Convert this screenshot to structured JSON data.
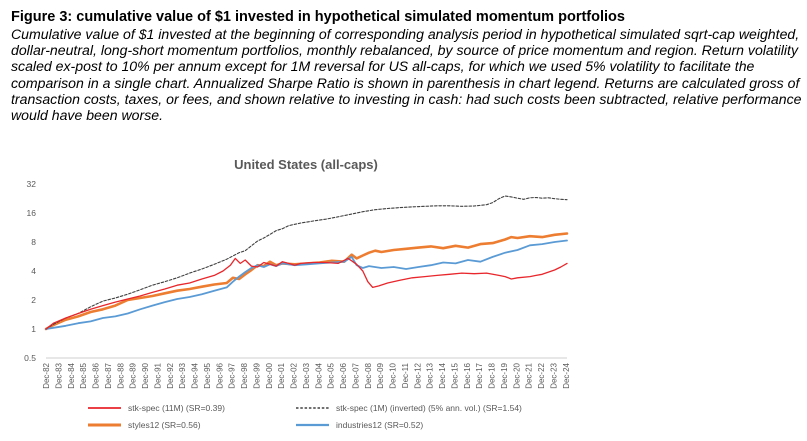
{
  "figure": {
    "title": "Figure 3: cumulative value of $1 invested in hypothetical simulated momentum portfolios",
    "caption": "Cumulative value of $1 invested at the beginning of corresponding analysis period in hypothetical simulated sqrt-cap weighted, dollar-neutral, long-short momentum portfolios, monthly rebalanced, by source of price momentum and region. Return volatility scaled ex-post to 10% per annum except for 1M reversal for US all-caps, for which we used 5% volatility to facilitate the comparison in a single chart. Annualized Sharpe Ratio is shown in parenthesis in chart legend. Returns are calculated gross of transaction costs, taxes, or fees, and shown relative to investing in cash: had such costs been subtracted, relative performance would have been worse."
  },
  "chart_data": {
    "type": "line",
    "title": "United States (all-caps)",
    "yscale": "log2",
    "ylim": [
      0.5,
      32
    ],
    "yticks": [
      "32",
      "16",
      "8",
      "4",
      "2",
      "1",
      "0.5"
    ],
    "xlim": [
      1982.9,
      2025.0
    ],
    "xticks": [
      "Dec-82",
      "Dec-83",
      "Dec-84",
      "Dec-85",
      "Dec-86",
      "Dec-87",
      "Dec-88",
      "Dec-89",
      "Dec-90",
      "Dec-91",
      "Dec-92",
      "Dec-93",
      "Dec-94",
      "Dec-95",
      "Dec-96",
      "Dec-97",
      "Dec-98",
      "Dec-99",
      "Dec-00",
      "Dec-01",
      "Dec-02",
      "Dec-03",
      "Dec-04",
      "Dec-05",
      "Dec-06",
      "Dec-07",
      "Dec-08",
      "Dec-09",
      "Dec-10",
      "Dec-11",
      "Dec-12",
      "Dec-13",
      "Dec-14",
      "Dec-15",
      "Dec-16",
      "Dec-17",
      "Dec-18",
      "Dec-19",
      "Dec-20",
      "Dec-21",
      "Dec-22",
      "Dec-23",
      "Dec-24"
    ],
    "series": [
      {
        "name": "stk-spec (11M) (SR=0.39)",
        "color": "#e8262b",
        "width": 1.3,
        "dash": "",
        "points": [
          [
            1982.9,
            1.0
          ],
          [
            1983.5,
            1.15
          ],
          [
            1984.5,
            1.3
          ],
          [
            1985.5,
            1.45
          ],
          [
            1986.5,
            1.6
          ],
          [
            1987.5,
            1.75
          ],
          [
            1988.5,
            1.9
          ],
          [
            1989.5,
            2.05
          ],
          [
            1990.5,
            2.2
          ],
          [
            1991.5,
            2.4
          ],
          [
            1992.5,
            2.6
          ],
          [
            1993.5,
            2.85
          ],
          [
            1994.5,
            3.0
          ],
          [
            1995.5,
            3.3
          ],
          [
            1996.5,
            3.6
          ],
          [
            1997.2,
            4.0
          ],
          [
            1997.8,
            4.6
          ],
          [
            1998.2,
            5.4
          ],
          [
            1998.6,
            4.8
          ],
          [
            1999.0,
            5.2
          ],
          [
            1999.5,
            4.5
          ],
          [
            2000.0,
            4.4
          ],
          [
            2000.5,
            4.9
          ],
          [
            2001.0,
            4.7
          ],
          [
            2001.5,
            4.5
          ],
          [
            2002.0,
            5.0
          ],
          [
            2002.5,
            4.8
          ],
          [
            2003.0,
            4.6
          ],
          [
            2003.5,
            4.8
          ],
          [
            2004.5,
            4.9
          ],
          [
            2005.5,
            4.9
          ],
          [
            2006.5,
            4.8
          ],
          [
            2007.3,
            5.4
          ],
          [
            2007.6,
            5.1
          ],
          [
            2008.0,
            4.7
          ],
          [
            2008.5,
            4.0
          ],
          [
            2008.9,
            3.1
          ],
          [
            2009.3,
            2.7
          ],
          [
            2009.8,
            2.8
          ],
          [
            2010.5,
            3.0
          ],
          [
            2011.5,
            3.2
          ],
          [
            2012.5,
            3.4
          ],
          [
            2013.5,
            3.5
          ],
          [
            2014.5,
            3.6
          ],
          [
            2015.5,
            3.7
          ],
          [
            2016.5,
            3.8
          ],
          [
            2017.5,
            3.75
          ],
          [
            2018.5,
            3.8
          ],
          [
            2019.5,
            3.6
          ],
          [
            2020.0,
            3.5
          ],
          [
            2020.5,
            3.3
          ],
          [
            2021.0,
            3.4
          ],
          [
            2022.0,
            3.5
          ],
          [
            2022.5,
            3.6
          ],
          [
            2023.0,
            3.7
          ],
          [
            2024.0,
            4.1
          ],
          [
            2024.5,
            4.4
          ],
          [
            2025.0,
            4.8
          ]
        ]
      },
      {
        "name": "stk-spec (1M) (inverted) (5% ann. vol.) (SR=1.54)",
        "color": "#404040",
        "width": 1.1,
        "dash": "2.5,1.8",
        "points": [
          [
            1982.9,
            1.0
          ],
          [
            1983.5,
            1.12
          ],
          [
            1984.5,
            1.3
          ],
          [
            1985.5,
            1.45
          ],
          [
            1986.5,
            1.7
          ],
          [
            1987.5,
            1.95
          ],
          [
            1988.5,
            2.1
          ],
          [
            1989.5,
            2.3
          ],
          [
            1990.5,
            2.55
          ],
          [
            1991.5,
            2.85
          ],
          [
            1992.5,
            3.1
          ],
          [
            1993.5,
            3.4
          ],
          [
            1994.5,
            3.8
          ],
          [
            1995.5,
            4.2
          ],
          [
            1996.5,
            4.7
          ],
          [
            1997.5,
            5.3
          ],
          [
            1998.5,
            6.2
          ],
          [
            1999.0,
            6.5
          ],
          [
            1999.5,
            7.3
          ],
          [
            2000.0,
            8.2
          ],
          [
            2000.5,
            8.8
          ],
          [
            2001.0,
            9.6
          ],
          [
            2001.5,
            10.5
          ],
          [
            2002.0,
            11.0
          ],
          [
            2002.5,
            11.8
          ],
          [
            2003.0,
            12.2
          ],
          [
            2003.5,
            12.6
          ],
          [
            2004.5,
            13.2
          ],
          [
            2005.5,
            13.8
          ],
          [
            2006.5,
            14.6
          ],
          [
            2007.5,
            15.5
          ],
          [
            2008.5,
            16.5
          ],
          [
            2009.5,
            17.3
          ],
          [
            2010.5,
            17.8
          ],
          [
            2011.5,
            18.2
          ],
          [
            2012.5,
            18.5
          ],
          [
            2013.5,
            18.8
          ],
          [
            2014.5,
            19.0
          ],
          [
            2015.5,
            19.0
          ],
          [
            2016.5,
            18.8
          ],
          [
            2017.5,
            18.9
          ],
          [
            2018.5,
            19.5
          ],
          [
            2019.0,
            20.5
          ],
          [
            2019.5,
            22.5
          ],
          [
            2020.0,
            24.0
          ],
          [
            2020.5,
            23.5
          ],
          [
            2021.0,
            22.8
          ],
          [
            2021.5,
            22.2
          ],
          [
            2022.0,
            23.0
          ],
          [
            2022.5,
            23.2
          ],
          [
            2023.0,
            22.8
          ],
          [
            2023.5,
            23.0
          ],
          [
            2024.0,
            22.5
          ],
          [
            2024.5,
            22.2
          ],
          [
            2025.0,
            22.0
          ]
        ]
      },
      {
        "name": "styles12 (SR=0.56)",
        "color": "#ed7d31",
        "width": 2.6,
        "dash": "",
        "points": [
          [
            1982.9,
            1.0
          ],
          [
            1983.5,
            1.1
          ],
          [
            1984.5,
            1.25
          ],
          [
            1985.5,
            1.35
          ],
          [
            1986.5,
            1.5
          ],
          [
            1987.5,
            1.6
          ],
          [
            1988.5,
            1.75
          ],
          [
            1989.5,
            2.0
          ],
          [
            1990.5,
            2.1
          ],
          [
            1991.5,
            2.2
          ],
          [
            1992.5,
            2.35
          ],
          [
            1993.5,
            2.5
          ],
          [
            1994.5,
            2.6
          ],
          [
            1995.5,
            2.75
          ],
          [
            1996.5,
            2.9
          ],
          [
            1997.5,
            3.0
          ],
          [
            1998.0,
            3.4
          ],
          [
            1998.5,
            3.3
          ],
          [
            1999.0,
            3.7
          ],
          [
            1999.5,
            4.1
          ],
          [
            2000.0,
            4.6
          ],
          [
            2000.5,
            4.5
          ],
          [
            2001.0,
            5.0
          ],
          [
            2001.5,
            4.6
          ],
          [
            2002.0,
            4.8
          ],
          [
            2003.0,
            4.7
          ],
          [
            2004.0,
            4.8
          ],
          [
            2005.0,
            4.9
          ],
          [
            2006.0,
            5.1
          ],
          [
            2007.0,
            5.0
          ],
          [
            2007.6,
            5.9
          ],
          [
            2008.0,
            5.4
          ],
          [
            2008.5,
            5.8
          ],
          [
            2009.0,
            6.2
          ],
          [
            2009.5,
            6.5
          ],
          [
            2010.0,
            6.3
          ],
          [
            2011.0,
            6.6
          ],
          [
            2012.0,
            6.8
          ],
          [
            2013.0,
            7.0
          ],
          [
            2014.0,
            7.2
          ],
          [
            2015.0,
            6.9
          ],
          [
            2016.0,
            7.3
          ],
          [
            2017.0,
            7.0
          ],
          [
            2018.0,
            7.6
          ],
          [
            2019.0,
            7.8
          ],
          [
            2020.0,
            8.5
          ],
          [
            2020.5,
            9.0
          ],
          [
            2021.0,
            8.8
          ],
          [
            2022.0,
            9.2
          ],
          [
            2023.0,
            9.0
          ],
          [
            2024.0,
            9.5
          ],
          [
            2025.0,
            9.8
          ]
        ]
      },
      {
        "name": "industries12 (SR=0.52)",
        "color": "#5b9bd5",
        "width": 1.8,
        "dash": "",
        "points": [
          [
            1982.9,
            1.0
          ],
          [
            1983.5,
            1.03
          ],
          [
            1984.5,
            1.08
          ],
          [
            1985.5,
            1.15
          ],
          [
            1986.5,
            1.2
          ],
          [
            1987.5,
            1.3
          ],
          [
            1988.5,
            1.35
          ],
          [
            1989.5,
            1.45
          ],
          [
            1990.5,
            1.6
          ],
          [
            1991.5,
            1.75
          ],
          [
            1992.5,
            1.9
          ],
          [
            1993.5,
            2.05
          ],
          [
            1994.5,
            2.15
          ],
          [
            1995.5,
            2.3
          ],
          [
            1996.5,
            2.5
          ],
          [
            1997.5,
            2.7
          ],
          [
            1998.0,
            3.1
          ],
          [
            1998.5,
            3.5
          ],
          [
            1999.0,
            3.9
          ],
          [
            1999.5,
            4.3
          ],
          [
            2000.0,
            4.6
          ],
          [
            2000.5,
            4.4
          ],
          [
            2001.0,
            4.7
          ],
          [
            2001.5,
            4.5
          ],
          [
            2002.0,
            4.8
          ],
          [
            2003.0,
            4.6
          ],
          [
            2004.0,
            4.7
          ],
          [
            2005.0,
            4.8
          ],
          [
            2006.0,
            4.9
          ],
          [
            2007.0,
            5.0
          ],
          [
            2007.6,
            5.6
          ],
          [
            2008.0,
            4.6
          ],
          [
            2008.5,
            4.3
          ],
          [
            2009.0,
            4.5
          ],
          [
            2010.0,
            4.3
          ],
          [
            2011.0,
            4.4
          ],
          [
            2012.0,
            4.2
          ],
          [
            2013.0,
            4.4
          ],
          [
            2014.0,
            4.6
          ],
          [
            2015.0,
            4.9
          ],
          [
            2016.0,
            4.8
          ],
          [
            2017.0,
            5.2
          ],
          [
            2018.0,
            5.0
          ],
          [
            2019.0,
            5.6
          ],
          [
            2020.0,
            6.2
          ],
          [
            2021.0,
            6.6
          ],
          [
            2022.0,
            7.4
          ],
          [
            2023.0,
            7.6
          ],
          [
            2024.0,
            8.0
          ],
          [
            2025.0,
            8.3
          ]
        ]
      }
    ],
    "legend_position": "bottom"
  }
}
